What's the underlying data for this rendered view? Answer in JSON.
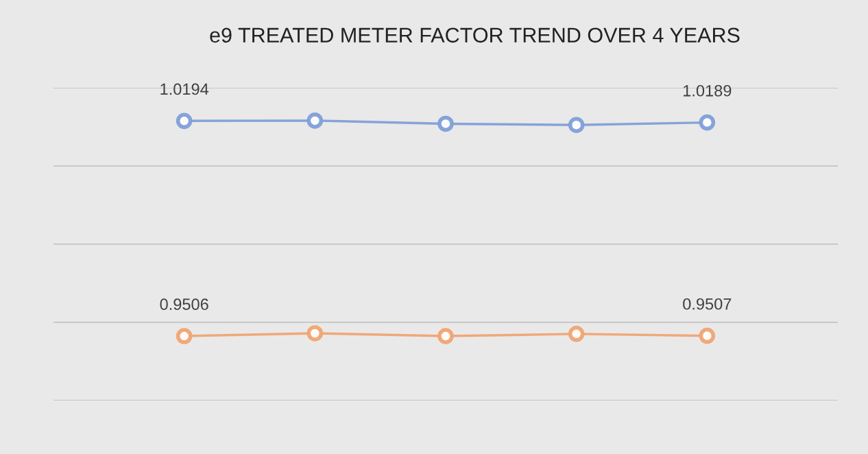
{
  "chart_data": {
    "type": "line",
    "title": "e9 TREATED METER FACTOR TREND OVER 4 YEARS",
    "categories": [
      null,
      null,
      null,
      null,
      null
    ],
    "series": [
      {
        "color": "#7f9fd8",
        "values": [
          1.0194,
          1.0195,
          1.0185,
          1.0181,
          1.0189
        ],
        "value_labels": [
          "1.0194",
          null,
          null,
          null,
          "1.0189"
        ]
      },
      {
        "color": "#f0a472",
        "values": [
          0.9506,
          0.9515,
          0.9506,
          0.9513,
          0.9507
        ],
        "value_labels": [
          "0.9506",
          null,
          null,
          null,
          "0.9507"
        ]
      }
    ],
    "ylim": [
      0.93,
      1.03
    ],
    "yticks": [
      {
        "value": 0.93,
        "label": null
      },
      {
        "value": 0.955,
        "label": null
      },
      {
        "value": 0.98,
        "label": null
      },
      {
        "value": 1.005,
        "label": null
      },
      {
        "value": 1.03,
        "label": null
      }
    ],
    "grid": "y",
    "marker": "circle",
    "line_style": "solid",
    "legend": false
  }
}
